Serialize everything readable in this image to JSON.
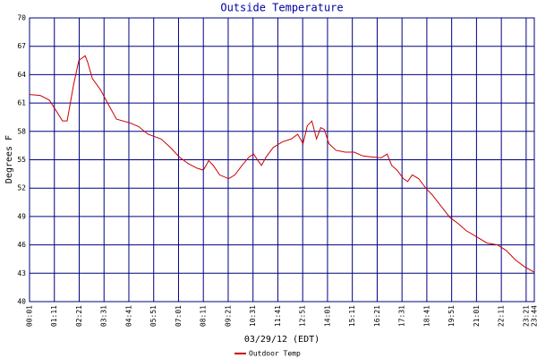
{
  "chart_data": {
    "type": "line",
    "title": "Outside Temperature",
    "xlabel": "03/29/12 (EDT)",
    "ylabel": "Degrees F",
    "x": [
      1,
      31,
      57,
      74,
      94,
      107,
      125,
      140,
      158,
      165,
      178,
      201,
      221,
      246,
      284,
      309,
      335,
      372,
      398,
      423,
      448,
      474,
      491,
      506,
      519,
      537,
      562,
      580,
      600,
      620,
      633,
      645,
      655,
      668,
      688,
      714,
      739,
      757,
      772,
      784,
      797,
      810,
      822,
      832,
      845,
      865,
      891,
      916,
      941,
      966,
      992,
      1009,
      1022,
      1037,
      1055,
      1067,
      1080,
      1098,
      1118,
      1136,
      1161,
      1186,
      1211,
      1232,
      1264,
      1290,
      1320,
      1345,
      1371,
      1396,
      1424
    ],
    "series": [
      {
        "name": "Outdoor Temp",
        "color": "#cc0000",
        "values": [
          61.9,
          61.8,
          61.3,
          60.3,
          59.1,
          59.1,
          62.9,
          65.5,
          66.0,
          65.3,
          63.6,
          62.4,
          61.0,
          59.3,
          58.9,
          58.5,
          57.7,
          57.2,
          56.3,
          55.3,
          54.6,
          54.1,
          53.9,
          54.9,
          54.4,
          53.4,
          53.0,
          53.4,
          54.4,
          55.3,
          55.6,
          54.9,
          54.4,
          55.3,
          56.3,
          56.9,
          57.2,
          57.7,
          56.7,
          58.6,
          59.1,
          57.2,
          58.4,
          58.2,
          56.7,
          56.0,
          55.8,
          55.8,
          55.4,
          55.3,
          55.2,
          55.6,
          54.4,
          53.9,
          53.0,
          52.7,
          53.4,
          53.0,
          52.0,
          51.3,
          50.1,
          48.9,
          48.2,
          47.5,
          46.8,
          46.2,
          46.0,
          45.4,
          44.4,
          43.7,
          43.1
        ]
      }
    ],
    "xlim": [
      1,
      1424
    ],
    "xticks": [
      {
        "value": 1,
        "label": "00:01"
      },
      {
        "value": 71,
        "label": "01:11"
      },
      {
        "value": 141,
        "label": "02:21"
      },
      {
        "value": 211,
        "label": "03:31"
      },
      {
        "value": 281,
        "label": "04:41"
      },
      {
        "value": 351,
        "label": "05:51"
      },
      {
        "value": 421,
        "label": "07:01"
      },
      {
        "value": 491,
        "label": "08:11"
      },
      {
        "value": 561,
        "label": "09:21"
      },
      {
        "value": 631,
        "label": "10:31"
      },
      {
        "value": 701,
        "label": "11:41"
      },
      {
        "value": 771,
        "label": "12:51"
      },
      {
        "value": 841,
        "label": "14:01"
      },
      {
        "value": 911,
        "label": "15:11"
      },
      {
        "value": 981,
        "label": "16:21"
      },
      {
        "value": 1051,
        "label": "17:31"
      },
      {
        "value": 1121,
        "label": "18:41"
      },
      {
        "value": 1191,
        "label": "19:51"
      },
      {
        "value": 1261,
        "label": "21:01"
      },
      {
        "value": 1331,
        "label": "22:11"
      },
      {
        "value": 1401,
        "label": "23:21"
      },
      {
        "value": 1424,
        "label": "23:44"
      }
    ],
    "ylim": [
      40,
      70
    ],
    "yticks": [
      40,
      43,
      46,
      49,
      52,
      55,
      58,
      61,
      64,
      67,
      70
    ],
    "grid": true,
    "grid_color": "#000080"
  }
}
